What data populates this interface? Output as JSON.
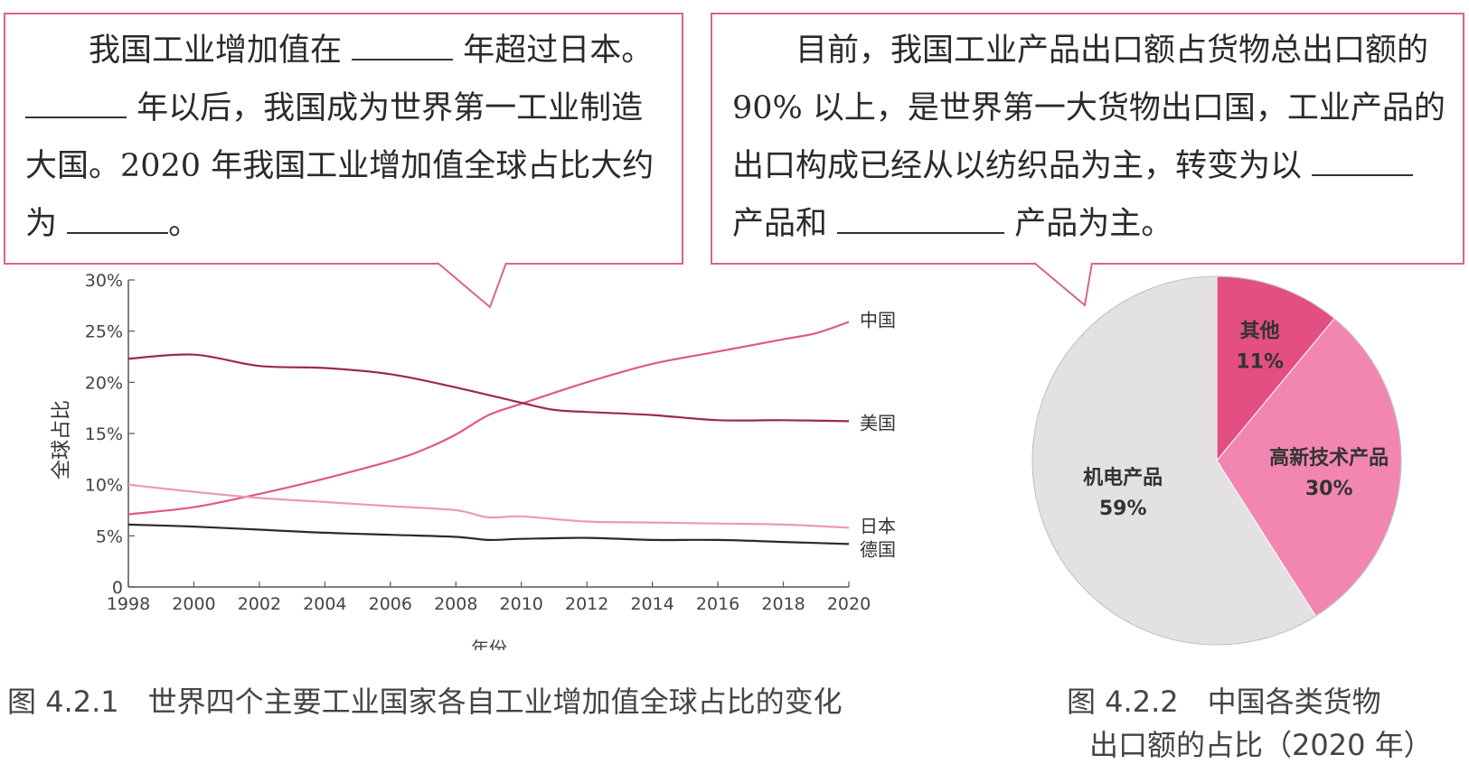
{
  "left_box": {
    "p1": "我国工业增加值在",
    "p2": "年超过日本。",
    "p3": "年以后，我国成为世界第一工业制造大国。2020 年我国工业增加值全球占比大约为",
    "p4": "。"
  },
  "right_box": {
    "p1": "目前，我国工业产品出口额占货物总出口额的 90% 以上，是世界第一大货物出口国，工业产品的出口构成已经从以纺织品为主，转变为以",
    "p2": "产品和",
    "p3": "产品为主。"
  },
  "caption_left": "图 4.2.1　世界四个主要工业国家各自工业增加值全球占比的变化",
  "caption_right": "图 4.2.2　中国各类货物",
  "caption_right_2": "出口额的占比（2020 年）",
  "colors": {
    "border": "#d9667f",
    "china": "#e0578a",
    "usa": "#9c2a4e",
    "japan": "#ec99b8",
    "germany": "#2b2b2b",
    "pie_other": "#e34f82",
    "pie_hightech": "#f286b0",
    "pie_mech": "#e3e1e2"
  },
  "chart_data": [
    {
      "type": "line",
      "xlabel": "年份",
      "ylabel": "全球占比",
      "xlim": [
        1998,
        2020
      ],
      "ylim": [
        0,
        30
      ],
      "x_ticks": [
        1998,
        2000,
        2002,
        2004,
        2006,
        2008,
        2010,
        2012,
        2014,
        2016,
        2018,
        2020
      ],
      "y_ticks": [
        {
          "value": 0,
          "label": "0"
        },
        {
          "value": 5,
          "label": "5%"
        },
        {
          "value": 10,
          "label": "10%"
        },
        {
          "value": 15,
          "label": "15%"
        },
        {
          "value": 20,
          "label": "20%"
        },
        {
          "value": 25,
          "label": "25%"
        },
        {
          "value": 30,
          "label": "30%"
        }
      ],
      "grid": false,
      "legend": "inline-right",
      "series": [
        {
          "name": "中国",
          "color_key": "china",
          "x": [
            1998,
            2000,
            2002,
            2004,
            2006,
            2007,
            2008,
            2009,
            2010,
            2012,
            2014,
            2016,
            2018,
            2019,
            2020
          ],
          "y": [
            7.1,
            7.8,
            9.1,
            10.6,
            12.3,
            13.4,
            14.9,
            16.8,
            17.9,
            20.0,
            21.8,
            23.0,
            24.2,
            24.8,
            25.9
          ]
        },
        {
          "name": "美国",
          "color_key": "usa",
          "x": [
            1998,
            2000,
            2002,
            2004,
            2006,
            2008,
            2010,
            2011,
            2012,
            2014,
            2016,
            2018,
            2020
          ],
          "y": [
            22.3,
            22.7,
            21.6,
            21.4,
            20.8,
            19.5,
            18.0,
            17.3,
            17.1,
            16.8,
            16.3,
            16.3,
            16.2
          ]
        },
        {
          "name": "日本",
          "color_key": "japan",
          "x": [
            1998,
            2000,
            2002,
            2004,
            2006,
            2008,
            2009,
            2010,
            2012,
            2014,
            2016,
            2018,
            2020
          ],
          "y": [
            10.0,
            9.3,
            8.7,
            8.3,
            7.9,
            7.5,
            6.8,
            6.9,
            6.4,
            6.3,
            6.2,
            6.1,
            5.8
          ]
        },
        {
          "name": "德国",
          "color_key": "germany",
          "x": [
            1998,
            2000,
            2002,
            2004,
            2006,
            2008,
            2009,
            2010,
            2012,
            2014,
            2016,
            2018,
            2020
          ],
          "y": [
            6.1,
            5.9,
            5.6,
            5.3,
            5.1,
            4.9,
            4.6,
            4.7,
            4.8,
            4.6,
            4.6,
            4.4,
            4.2
          ]
        }
      ]
    },
    {
      "type": "pie",
      "slices": [
        {
          "label": "其他",
          "value": 11,
          "value_label": "11%",
          "color_key": "pie_other"
        },
        {
          "label": "高新技术产品",
          "value": 30,
          "value_label": "30%",
          "color_key": "pie_hightech"
        },
        {
          "label": "机电产品",
          "value": 59,
          "value_label": "59%",
          "color_key": "pie_mech"
        }
      ]
    }
  ]
}
